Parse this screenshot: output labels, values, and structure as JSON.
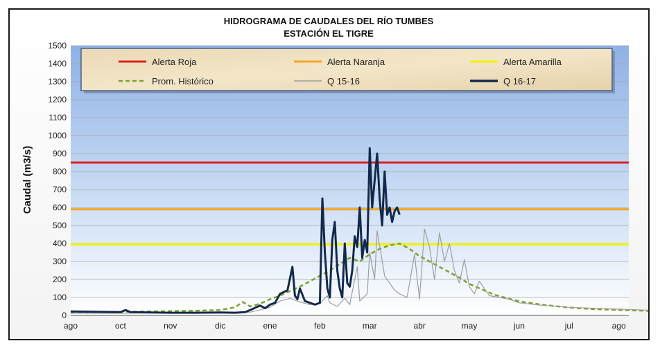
{
  "chart_data": {
    "type": "line",
    "title": "HIDROGRAMA DE CAUDALES  DEL RÍO TUMBES",
    "subtitle": "ESTACIÓN EL TIGRE",
    "ylabel": "Caudal (m3/s)",
    "xlabel": "",
    "ylim": [
      0,
      1500
    ],
    "yticks": [
      "0",
      "100",
      "200",
      "300",
      "400",
      "500",
      "600",
      "700",
      "800",
      "900",
      "1000",
      "1100",
      "1200",
      "1300",
      "1400",
      "1500"
    ],
    "x_ticks": [
      "ago",
      "oct",
      "nov",
      "dic",
      "ene",
      "feb",
      "mar",
      "abr",
      "may",
      "jun",
      "jul",
      "ago"
    ],
    "grid": true,
    "legend_position": "top",
    "colors": {
      "alerta_roja": "#e02020",
      "alerta_naranja": "#f5a623",
      "alerta_amarilla": "#f4f400",
      "historico": "#7aa02a",
      "q1516": "#9e9e9e",
      "q1617": "#13294b"
    },
    "thresholds": [
      {
        "name": "Alerta Roja",
        "value": 850
      },
      {
        "name": "Alerta Naranja",
        "value": 590
      },
      {
        "name": "Alerta Amarilla",
        "value": 395
      }
    ],
    "series": [
      {
        "name": "Prom. Histórico",
        "x": [
          0,
          0.5,
          1,
          1.5,
          2,
          2.5,
          3,
          3.3,
          3.45,
          3.6,
          3.8,
          4,
          4.2,
          4.4,
          4.6,
          4.8,
          5,
          5.2,
          5.4,
          5.6,
          5.8,
          6,
          6.2,
          6.4,
          6.6,
          6.8,
          7,
          7.2,
          7.4,
          7.6,
          7.8,
          8,
          8.5,
          9,
          9.5,
          10,
          10.5,
          11,
          11.5,
          11.9
        ],
        "values": [
          18,
          19,
          20,
          22,
          24,
          26,
          30,
          45,
          75,
          50,
          65,
          90,
          110,
          135,
          160,
          190,
          220,
          250,
          285,
          320,
          300,
          340,
          370,
          390,
          400,
          370,
          330,
          300,
          270,
          240,
          210,
          175,
          115,
          78,
          58,
          44,
          35,
          30,
          26,
          22
        ]
      },
      {
        "name": "Q 15-16",
        "x": [
          0,
          1,
          2,
          3,
          3.6,
          4,
          4.2,
          4.4,
          4.6,
          4.8,
          5,
          5.15,
          5.2,
          5.35,
          5.5,
          5.6,
          5.75,
          5.8,
          5.95,
          6,
          6.1,
          6.15,
          6.3,
          6.4,
          6.5,
          6.6,
          6.75,
          6.9,
          7,
          7.1,
          7.2,
          7.3,
          7.4,
          7.5,
          7.6,
          7.7,
          7.8,
          7.9,
          8,
          8.1,
          8.2,
          8.4,
          8.6,
          8.8,
          9,
          9.5,
          10,
          10.5,
          11,
          11.5,
          11.9
        ],
        "values": [
          12,
          12,
          14,
          15,
          18,
          45,
          80,
          95,
          75,
          60,
          65,
          110,
          70,
          50,
          95,
          60,
          270,
          80,
          120,
          350,
          200,
          470,
          220,
          180,
          140,
          120,
          100,
          340,
          90,
          480,
          380,
          200,
          460,
          300,
          400,
          250,
          180,
          310,
          160,
          120,
          190,
          110,
          100,
          90,
          70,
          55,
          45,
          40,
          35,
          30,
          25
        ]
      },
      {
        "name": "Q 16-17",
        "x": [
          0,
          0.5,
          1,
          1.1,
          1.2,
          1.5,
          2,
          2.5,
          3,
          3.3,
          3.5,
          3.6,
          3.8,
          3.9,
          4,
          4.1,
          4.2,
          4.35,
          4.45,
          4.5,
          4.55,
          4.6,
          4.7,
          4.8,
          4.9,
          5,
          5.05,
          5.1,
          5.15,
          5.2,
          5.25,
          5.3,
          5.35,
          5.4,
          5.45,
          5.5,
          5.55,
          5.6,
          5.65,
          5.7,
          5.75,
          5.8,
          5.85,
          5.9,
          5.95,
          6,
          6.05,
          6.1,
          6.15,
          6.2,
          6.25,
          6.3,
          6.35,
          6.4,
          6.45,
          6.5,
          6.55,
          6.6
        ],
        "values": [
          22,
          20,
          18,
          30,
          18,
          17,
          15,
          15,
          16,
          15,
          18,
          30,
          55,
          40,
          60,
          70,
          120,
          140,
          270,
          110,
          90,
          150,
          80,
          70,
          60,
          70,
          650,
          350,
          150,
          100,
          420,
          520,
          250,
          150,
          100,
          400,
          180,
          160,
          250,
          440,
          380,
          600,
          320,
          420,
          350,
          930,
          600,
          750,
          900,
          650,
          500,
          800,
          560,
          600,
          520,
          580,
          600,
          560
        ]
      }
    ]
  }
}
